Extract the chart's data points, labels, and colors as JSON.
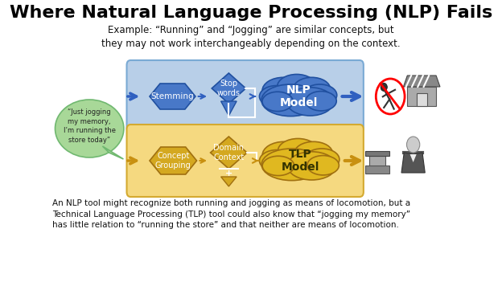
{
  "title": "Where Natural Language Processing (NLP) Fails",
  "subtitle": "Example: “Running” and “Jogging” are similar concepts, but\nthey may not work interchangeably depending on the context.",
  "speech_bubble_text": "“Just jogging\nmy memory,\nI’m running the\nstore today”",
  "nlp_box_bg": "#b8cfe8",
  "nlp_box_edge": "#7aaad4",
  "tlp_box_bg": "#f5d980",
  "tlp_box_edge": "#d4aa30",
  "stemming_text": "Stemming",
  "stop_words_text": "Stop\nwords",
  "nlp_model_text": "NLP\nModel",
  "concept_grouping_text": "Concept\nGrouping",
  "domain_context_text": "Domain\nContext",
  "tlp_model_text": "TLP\nModel",
  "arrow_blue": "#3060c0",
  "arrow_gold": "#c89010",
  "hex_blue_face": "#4878c8",
  "hex_blue_edge": "#2050a0",
  "hex_gold_face": "#d4a820",
  "hex_gold_edge": "#a07010",
  "cloud_blue_face": "#4878c8",
  "cloud_blue_edge": "#2050a0",
  "cloud_gold_face": "#e0b820",
  "cloud_gold_edge": "#a07010",
  "speech_bubble_face": "#a8d898",
  "speech_bubble_edge": "#70b870",
  "footer_text": "An NLP tool might recognize both running and jogging as means of locomotion, but a\nTechnical Language Processing (TLP) tool could also know that “jogging my memory”\nhas little relation to “running the store” and that neither are means of locomotion.",
  "background_color": "#ffffff",
  "title_color": "#000000"
}
